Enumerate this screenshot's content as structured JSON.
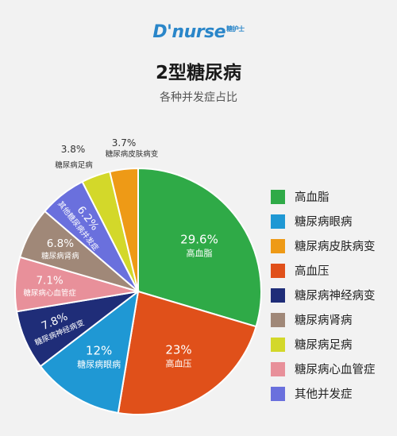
{
  "header": {
    "logo_text": "D'nurse",
    "logo_sub": "糖护士",
    "title": "2型糖尿病",
    "subtitle": "各种并发症占比"
  },
  "chart_data": {
    "type": "pie",
    "title": "2型糖尿病",
    "subtitle": "各种并发症占比",
    "legend_placement": "right",
    "start_angle_deg": 0,
    "direction": "clockwise",
    "slices": [
      {
        "label": "高血脂",
        "value": 29.6,
        "value_label": "29.6%",
        "color": "#2faa47",
        "label_style": "inside"
      },
      {
        "label": "高血压",
        "value": 23,
        "value_label": "23%",
        "color": "#e0501a",
        "label_style": "inside"
      },
      {
        "label": "糖尿病眼病",
        "value": 12,
        "value_label": "12%",
        "color": "#1f98d4",
        "label_style": "inside"
      },
      {
        "label": "糖尿病神经病变",
        "value": 7.8,
        "value_label": "7.8%",
        "color": "#1f2d78",
        "label_style": "inside-rotated"
      },
      {
        "label": "糖尿病心血管症",
        "value": 7.1,
        "value_label": "7.1%",
        "color": "#e8909a",
        "label_style": "inside"
      },
      {
        "label": "糖尿病肾病",
        "value": 6.8,
        "value_label": "6.8%",
        "color": "#a08878",
        "label_style": "inside"
      },
      {
        "label": "其他糖尿病并发症",
        "value": 6.2,
        "value_label": "6.2%",
        "color": "#6a70dd",
        "label_style": "inside-rotated"
      },
      {
        "label": "糖尿病足病",
        "value": 3.8,
        "value_label": "3.8%",
        "color": "#d3d82a",
        "label_style": "outside"
      },
      {
        "label": "糖尿病皮肤病变",
        "value": 3.7,
        "value_label": "3.7%",
        "color": "#ee9a16",
        "label_style": "outside"
      }
    ],
    "legend": [
      {
        "label": "高血脂",
        "color": "#2faa47"
      },
      {
        "label": "糖尿病眼病",
        "color": "#1f98d4"
      },
      {
        "label": "糖尿病皮肤病变",
        "color": "#ee9a16"
      },
      {
        "label": "高血压",
        "color": "#e0501a"
      },
      {
        "label": "糖尿病神经病变",
        "color": "#1f2d78"
      },
      {
        "label": "糖尿病肾病",
        "color": "#a08878"
      },
      {
        "label": "糖尿病足病",
        "color": "#d3d82a"
      },
      {
        "label": "糖尿病心血管症",
        "color": "#e8909a"
      },
      {
        "label": "其他并发症",
        "color": "#6a70dd"
      }
    ]
  }
}
